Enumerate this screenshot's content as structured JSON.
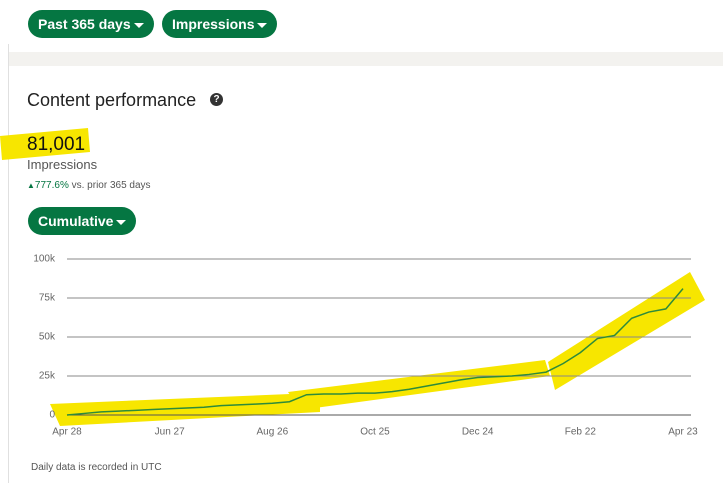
{
  "filters": [
    "Past 365 days",
    "Impressions"
  ],
  "section": {
    "title": "Content performance"
  },
  "metric": {
    "value": "81,001",
    "label": "Impressions",
    "change": "777.6%",
    "period": "vs. prior 365 days"
  },
  "view": "Cumulative",
  "footnote": "Daily data is recorded in UTC",
  "chart_data": {
    "type": "line",
    "categories": [
      "Apr 28",
      null,
      null,
      null,
      null,
      null,
      "Jun 27",
      null,
      null,
      null,
      null,
      null,
      "Aug 26",
      null,
      null,
      null,
      null,
      null,
      "Oct 25",
      null,
      null,
      null,
      null,
      null,
      "Dec 24",
      null,
      null,
      null,
      null,
      null,
      "Feb 22",
      null,
      null,
      null,
      null,
      null,
      "Apr 23"
    ],
    "series": [
      {
        "name": "Impressions",
        "color": "#2e8b3a",
        "values": [
          0,
          1000,
          2000,
          2500,
          3000,
          3500,
          4000,
          4500,
          5000,
          6000,
          6500,
          7000,
          7500,
          8500,
          13000,
          13500,
          13500,
          14000,
          14000,
          15000,
          16500,
          18500,
          20500,
          22500,
          24000,
          24500,
          25000,
          26000,
          27500,
          33000,
          40000,
          49000,
          51000,
          62000,
          66000,
          68000,
          81000
        ]
      }
    ],
    "ylim": [
      0,
      100000
    ],
    "yticks": [
      0,
      {
        "value": 25000,
        "label": "25k"
      },
      {
        "value": 50000,
        "label": "50k"
      },
      {
        "value": 75000,
        "label": "75k"
      },
      {
        "value": 100000,
        "label": "100k"
      }
    ],
    "grid": true
  }
}
